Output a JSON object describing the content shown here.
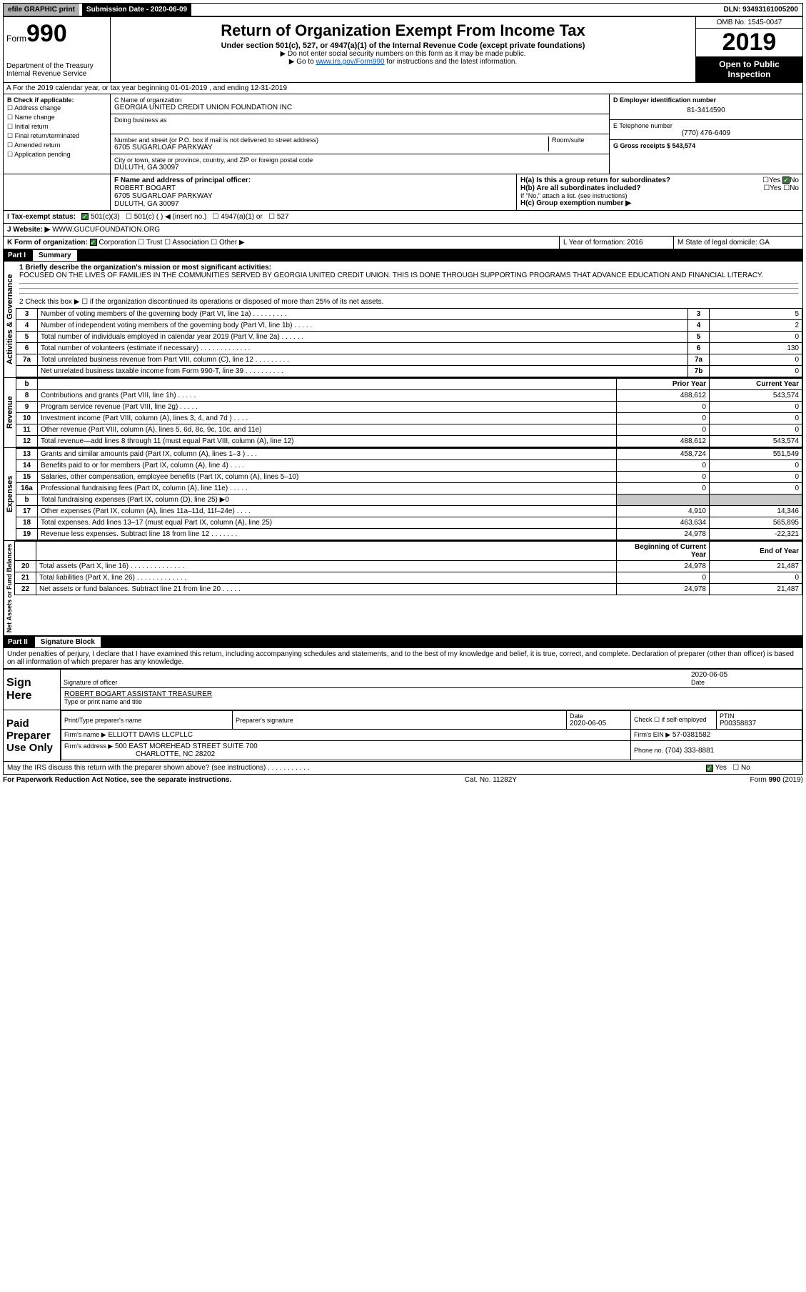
{
  "topbar": {
    "efile": "efile GRAPHIC print",
    "subdate_label": "Submission Date - 2020-06-09",
    "dln": "DLN: 93493161005200"
  },
  "header": {
    "form_label": "Form",
    "form_number": "990",
    "dept": "Department of the Treasury",
    "irs": "Internal Revenue Service",
    "title": "Return of Organization Exempt From Income Tax",
    "subtitle": "Under section 501(c), 527, or 4947(a)(1) of the Internal Revenue Code (except private foundations)",
    "note1": "▶ Do not enter social security numbers on this form as it may be made public.",
    "note2_pre": "▶ Go to ",
    "note2_link": "www.irs.gov/Form990",
    "note2_post": " for instructions and the latest information.",
    "omb": "OMB No. 1545-0047",
    "year": "2019",
    "open_public": "Open to Public Inspection"
  },
  "line_a": "A For the 2019 calendar year, or tax year beginning 01-01-2019    , and ending 12-31-2019",
  "section_b": {
    "label": "B Check if applicable:",
    "options": [
      "Address change",
      "Name change",
      "Initial return",
      "Final return/terminated",
      "Amended return",
      "Application pending"
    ]
  },
  "section_c": {
    "name_label": "C Name of organization",
    "name": "GEORGIA UNITED CREDIT UNION FOUNDATION INC",
    "dba_label": "Doing business as",
    "addr_label": "Number and street (or P.O. box if mail is not delivered to street address)",
    "room_label": "Room/suite",
    "addr": "6705 SUGARLOAF PARKWAY",
    "city_label": "City or town, state or province, country, and ZIP or foreign postal code",
    "city": "DULUTH, GA  30097"
  },
  "section_d": {
    "label": "D Employer identification number",
    "value": "81-3414590"
  },
  "section_e": {
    "label": "E Telephone number",
    "value": "(770) 476-6409"
  },
  "section_g": {
    "label": "G Gross receipts $ 543,574"
  },
  "section_f": {
    "label": "F  Name and address of principal officer:",
    "name": "ROBERT BOGART",
    "addr": "6705 SUGARLOAF PARKWAY",
    "city": "DULUTH, GA  30097"
  },
  "section_h": {
    "ha": "H(a)  Is this a group return for subordinates?",
    "hb": "H(b)  Are all subordinates included?",
    "hb_note": "If \"No,\" attach a list. (see instructions)",
    "hc": "H(c)  Group exemption number ▶"
  },
  "section_i": {
    "label": "I  Tax-exempt status:",
    "opts": [
      "501(c)(3)",
      "501(c) (  ) ◀ (insert no.)",
      "4947(a)(1) or",
      "527"
    ]
  },
  "section_j": {
    "label": "J  Website: ▶",
    "value": "WWW.GUCUFOUNDATION.ORG"
  },
  "section_k": {
    "label": "K Form of organization:",
    "opts": [
      "Corporation",
      "Trust",
      "Association",
      "Other ▶"
    ]
  },
  "section_l": {
    "label": "L Year of formation: 2016"
  },
  "section_m": {
    "label": "M State of legal domicile: GA"
  },
  "part1": {
    "hdr": "Part I",
    "title": "Summary",
    "line1_label": "1  Briefly describe the organization's mission or most significant activities:",
    "line1_text": "FOCUSED ON THE LIVES OF FAMILIES IN THE COMMUNITIES SERVED BY GEORGIA UNITED CREDIT UNION. THIS IS DONE THROUGH SUPPORTING PROGRAMS THAT ADVANCE EDUCATION AND FINANCIAL LITERACY.",
    "line2": "2   Check this box ▶ ☐  if the organization discontinued its operations or disposed of more than 25% of its net assets."
  },
  "gov_rows": [
    {
      "n": "3",
      "t": "Number of voting members of the governing body (Part VI, line 1a)  .    .    .    .    .    .    .    .    .",
      "box": "3",
      "v": "5"
    },
    {
      "n": "4",
      "t": "Number of independent voting members of the governing body (Part VI, line 1b)   .    .    .    .    .",
      "box": "4",
      "v": "2"
    },
    {
      "n": "5",
      "t": "Total number of individuals employed in calendar year 2019 (Part V, line 2a)   .    .    .    .    .    .",
      "box": "5",
      "v": "0"
    },
    {
      "n": "6",
      "t": "Total number of volunteers (estimate if necessary)    .    .    .    .    .    .    .    .    .    .    .    .    .",
      "box": "6",
      "v": "130"
    },
    {
      "n": "7a",
      "t": "Total unrelated business revenue from Part VIII, column (C), line 12   .    .    .    .    .    .    .    .    .",
      "box": "7a",
      "v": "0"
    },
    {
      "n": "",
      "t": "Net unrelated business taxable income from Form 990-T, line 39   .    .    .    .    .    .    .    .    .    .",
      "box": "7b",
      "v": "0"
    }
  ],
  "col_headers": {
    "b": "b",
    "prior": "Prior Year",
    "current": "Current Year"
  },
  "rev_rows": [
    {
      "n": "8",
      "t": "Contributions and grants (Part VIII, line 1h)   .    .    .    .    .",
      "p": "488,612",
      "c": "543,574"
    },
    {
      "n": "9",
      "t": "Program service revenue (Part VIII, line 2g)   .    .    .    .    .",
      "p": "0",
      "c": "0"
    },
    {
      "n": "10",
      "t": "Investment income (Part VIII, column (A), lines 3, 4, and 7d )   .    .    .    .",
      "p": "0",
      "c": "0"
    },
    {
      "n": "11",
      "t": "Other revenue (Part VIII, column (A), lines 5, 6d, 8c, 9c, 10c, and 11e)",
      "p": "0",
      "c": "0"
    },
    {
      "n": "12",
      "t": "Total revenue—add lines 8 through 11 (must equal Part VIII, column (A), line 12)",
      "p": "488,612",
      "c": "543,574"
    }
  ],
  "exp_rows": [
    {
      "n": "13",
      "t": "Grants and similar amounts paid (Part IX, column (A), lines 1–3 )   .    .    .",
      "p": "458,724",
      "c": "551,549"
    },
    {
      "n": "14",
      "t": "Benefits paid to or for members (Part IX, column (A), line 4)   .    .    .    .",
      "p": "0",
      "c": "0"
    },
    {
      "n": "15",
      "t": "Salaries, other compensation, employee benefits (Part IX, column (A), lines 5–10)",
      "p": "0",
      "c": "0"
    },
    {
      "n": "16a",
      "t": "Professional fundraising fees (Part IX, column (A), line 11e)   .    .    .    .    .",
      "p": "0",
      "c": "0"
    },
    {
      "n": "b",
      "t": "Total fundraising expenses (Part IX, column (D), line 25) ▶0",
      "p": "",
      "c": "",
      "shade": true
    },
    {
      "n": "17",
      "t": "Other expenses (Part IX, column (A), lines 11a–11d, 11f–24e)   .    .    .    .",
      "p": "4,910",
      "c": "14,346"
    },
    {
      "n": "18",
      "t": "Total expenses. Add lines 13–17 (must equal Part IX, column (A), line 25)",
      "p": "463,634",
      "c": "565,895"
    },
    {
      "n": "19",
      "t": "Revenue less expenses. Subtract line 18 from line 12   .    .    .    .    .    .    .",
      "p": "24,978",
      "c": "-22,321"
    }
  ],
  "net_headers": {
    "begin": "Beginning of Current Year",
    "end": "End of Year"
  },
  "net_rows": [
    {
      "n": "20",
      "t": "Total assets (Part X, line 16)   .    .    .    .    .    .    .    .    .    .    .    .    .    .",
      "p": "24,978",
      "c": "21,487"
    },
    {
      "n": "21",
      "t": "Total liabilities (Part X, line 26)   .    .    .    .    .    .    .    .    .    .    .    .    .",
      "p": "0",
      "c": "0"
    },
    {
      "n": "22",
      "t": "Net assets or fund balances. Subtract line 21 from line 20   .    .    .    .    .",
      "p": "24,978",
      "c": "21,487"
    }
  ],
  "part2": {
    "hdr": "Part II",
    "title": "Signature Block",
    "perjury": "Under penalties of perjury, I declare that I have examined this return, including accompanying schedules and statements, and to the best of my knowledge and belief, it is true, correct, and complete. Declaration of preparer (other than officer) is based on all information of which preparer has any knowledge."
  },
  "sign": {
    "here": "Sign Here",
    "sig_label": "Signature of officer",
    "date": "2020-06-05",
    "date_label": "Date",
    "name": "ROBERT BOGART  ASSISTANT TREASURER",
    "name_label": "Type or print name and title"
  },
  "paid": {
    "label": "Paid Preparer Use Only",
    "print_name": "Print/Type preparer's name",
    "prep_sig": "Preparer's signature",
    "date_label": "Date",
    "date": "2020-06-05",
    "check_label": "Check ☐ if self-employed",
    "ptin_label": "PTIN",
    "ptin": "P00358837",
    "firm_name_label": "Firm's name    ▶",
    "firm_name": "ELLIOTT DAVIS LLCPLLC",
    "firm_ein_label": "Firm's EIN ▶",
    "firm_ein": "57-0381582",
    "firm_addr_label": "Firm's address ▶",
    "firm_addr": "500 EAST MOREHEAD STREET SUITE 700",
    "firm_city": "CHARLOTTE, NC  28202",
    "phone_label": "Phone no.",
    "phone": "(704) 333-8881"
  },
  "discuss": "May the IRS discuss this return with the preparer shown above? (see instructions)    .    .    .    .    .    .    .    .    .    .    .",
  "footer": {
    "left": "For Paperwork Reduction Act Notice, see the separate instructions.",
    "mid": "Cat. No. 11282Y",
    "right": "Form 990 (2019)"
  },
  "vtabs": {
    "gov": "Activities & Governance",
    "rev": "Revenue",
    "exp": "Expenses",
    "net": "Net Assets or Fund Balances"
  }
}
